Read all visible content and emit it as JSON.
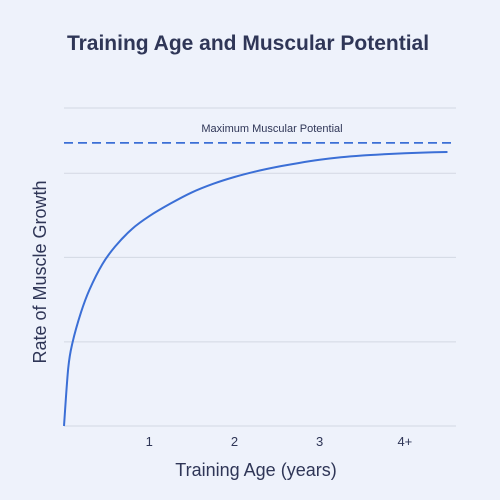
{
  "chart_data": {
    "type": "line",
    "title": "Training Age and Muscular Potential",
    "xlabel": "Training Age (years)",
    "ylabel": "Rate of Muscle Growth",
    "x_ticks": [
      {
        "value": 1,
        "label": "1"
      },
      {
        "value": 2,
        "label": "2"
      },
      {
        "value": 3,
        "label": "3"
      },
      {
        "value": 4,
        "label": "4+"
      }
    ],
    "xlim": [
      0,
      4.6
    ],
    "ylim": [
      0,
      1.25
    ],
    "grid": true,
    "y_gridlines": [
      0,
      0.333,
      0.667,
      1.0,
      1.333
    ],
    "series": [
      {
        "color": "#3b6fd6",
        "x": [
          0,
          0.05,
          0.1,
          0.2,
          0.3,
          0.45,
          0.6,
          0.8,
          1.0,
          1.25,
          1.5,
          1.75,
          2.0,
          2.25,
          2.5,
          2.75,
          3.0,
          3.25,
          3.5,
          3.75,
          4.0,
          4.25,
          4.5
        ],
        "y": [
          0,
          0.23,
          0.33,
          0.45,
          0.54,
          0.64,
          0.71,
          0.78,
          0.83,
          0.88,
          0.924,
          0.958,
          0.985,
          1.007,
          1.025,
          1.04,
          1.053,
          1.063,
          1.07,
          1.075,
          1.079,
          1.082,
          1.084
        ]
      }
    ],
    "reference_lines": [
      {
        "label": "Maximum Muscular Potential",
        "y": 1.12,
        "style": "dashed",
        "color": "#3b6fd6"
      }
    ]
  }
}
